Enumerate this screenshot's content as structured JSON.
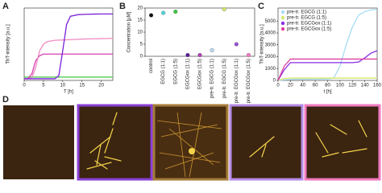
{
  "panel_labels": [
    "A",
    "B",
    "C",
    "D"
  ],
  "chart_data": [
    {
      "type": "line",
      "x_label": "T [h]",
      "y_label": "ThT-intensity [a.u.]",
      "x": [
        0,
        1,
        2,
        3,
        4,
        5,
        6,
        7,
        8,
        9,
        10,
        11,
        12,
        14,
        16,
        18,
        20,
        22,
        23
      ],
      "xlim": [
        0,
        23
      ],
      "xticks": [
        0,
        5,
        10,
        15,
        20
      ],
      "ylim": [
        0,
        2200
      ],
      "series": [
        {
          "color": "#3cc93c",
          "values": [
            100,
            100,
            100,
            100,
            100,
            100,
            100,
            100,
            100,
            100,
            100,
            100,
            100,
            100,
            100,
            100,
            100,
            100,
            100
          ]
        },
        {
          "color": "#d63fb3",
          "values": [
            50,
            60,
            200,
            600,
            750,
            800,
            800,
            800,
            800,
            800,
            800,
            800,
            800,
            800,
            800,
            800,
            800,
            800,
            800
          ]
        },
        {
          "color": "#f08ac0",
          "values": [
            50,
            50,
            80,
            400,
            900,
            1100,
            1180,
            1200,
            1220,
            1225,
            1230,
            1235,
            1240,
            1250,
            1260,
            1265,
            1270,
            1275,
            1280
          ]
        },
        {
          "color": "#7b1fd6",
          "values": [
            50,
            50,
            50,
            50,
            50,
            50,
            50,
            50,
            50,
            150,
            900,
            1700,
            1950,
            2000,
            2010,
            2015,
            2020,
            2020,
            2020
          ]
        }
      ]
    },
    {
      "type": "dot",
      "y_label": "Concentration [µM]",
      "categories": [
        "control",
        "EGCG (1:1)",
        "EGCG (1:5)",
        "EGCGox (1:1)",
        "EGCGox (1:5)",
        "pre-tr. EGCG (1:1)",
        "pre-tr. EGCG (1:5)",
        "pre-tr. EGCGox (1:1)",
        "pre-tr. EGCGox (1:5)"
      ],
      "values": [
        17,
        18,
        18.5,
        0.5,
        0.5,
        2.5,
        19.5,
        5,
        0.5
      ],
      "colors": [
        "#111111",
        "#4fd3d6",
        "#3cc93c",
        "#5a1a9a",
        "#b03fb3",
        "#b8d8f0",
        "#d6e66a",
        "#9a4fd6",
        "#f07ac0"
      ],
      "ylim": [
        0,
        20
      ],
      "yticks": [
        0,
        5,
        10,
        15,
        20
      ]
    },
    {
      "type": "line",
      "x_label": "t [h]",
      "y_label": "ThT-intensity [a.u.]",
      "x": [
        0,
        10,
        20,
        40,
        60,
        80,
        90,
        100,
        110,
        120,
        130,
        140,
        150,
        160
      ],
      "xlim": [
        0,
        160
      ],
      "xticks": [
        0,
        20,
        40,
        60,
        80,
        100,
        120,
        140,
        160
      ],
      "ylim": [
        0,
        6100
      ],
      "yticks": [
        0,
        1000,
        2000,
        3000,
        4000,
        5000
      ],
      "series": [
        {
          "name": "pre-tr. EGCG (1:1)",
          "color": "#a8dcf5",
          "values": [
            0,
            50,
            80,
            100,
            100,
            120,
            200,
            1200,
            3000,
            4500,
            5500,
            5800,
            5950,
            6000
          ]
        },
        {
          "name": "pre-tr. EGCG (1:5)",
          "color": "#d6e66a",
          "values": [
            0,
            150,
            200,
            200,
            200,
            200,
            200,
            200,
            200,
            200,
            200,
            200,
            200,
            200
          ]
        },
        {
          "name": "pre-tr. EGCGox (1:1)",
          "color": "#8a2be2",
          "values": [
            0,
            900,
            1500,
            1500,
            1500,
            1500,
            1500,
            1500,
            1500,
            1500,
            1550,
            1900,
            2300,
            2500
          ]
        },
        {
          "name": "pre-tr. EGCGox (1:5)",
          "color": "#e040a0",
          "values": [
            0,
            1200,
            1800,
            1800,
            1800,
            1800,
            1800,
            1800,
            1800,
            1800,
            1800,
            1800,
            1800,
            1800
          ]
        }
      ]
    }
  ]
}
